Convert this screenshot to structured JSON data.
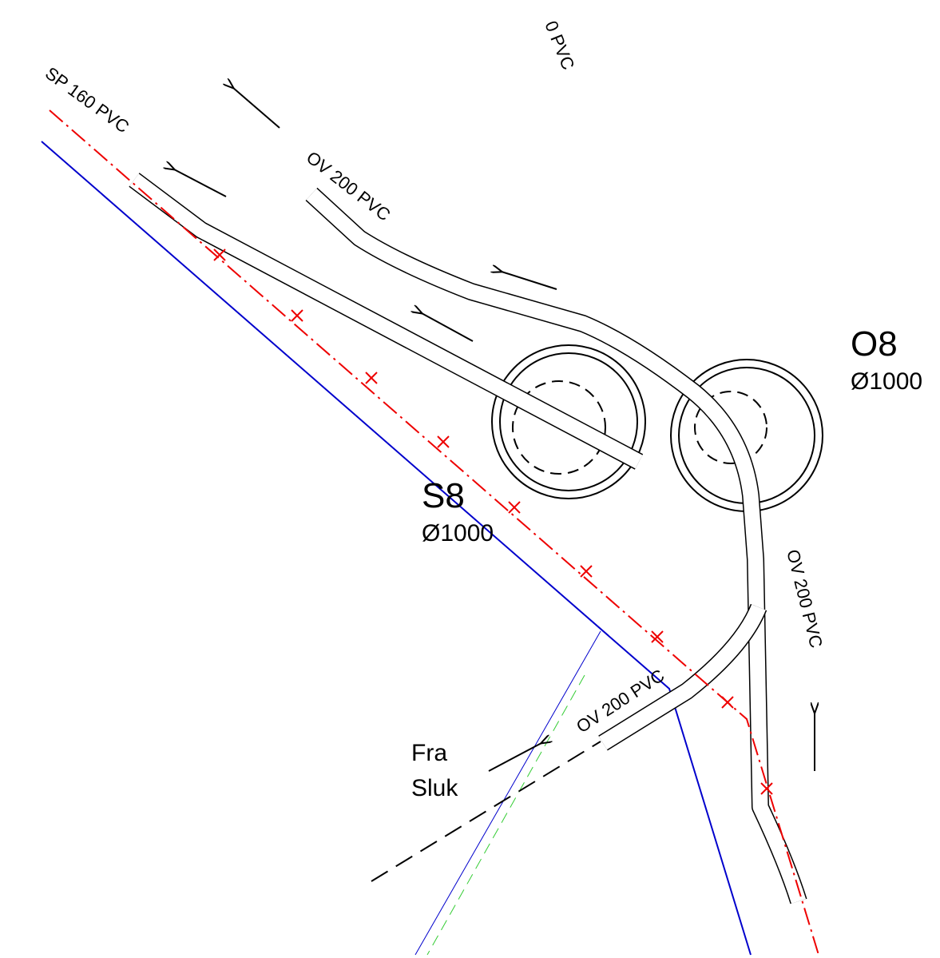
{
  "manholes": [
    {
      "id": "S8",
      "diameter": "Ø1000"
    },
    {
      "id": "O8",
      "diameter": "Ø1000"
    }
  ],
  "pipe_labels": [
    "0 PVC",
    "SP 160 PVC",
    "OV 200 PVC",
    "OV 200 PVC",
    "OV 200 PVC"
  ],
  "inlet_label": [
    "Fra",
    "Sluk"
  ]
}
